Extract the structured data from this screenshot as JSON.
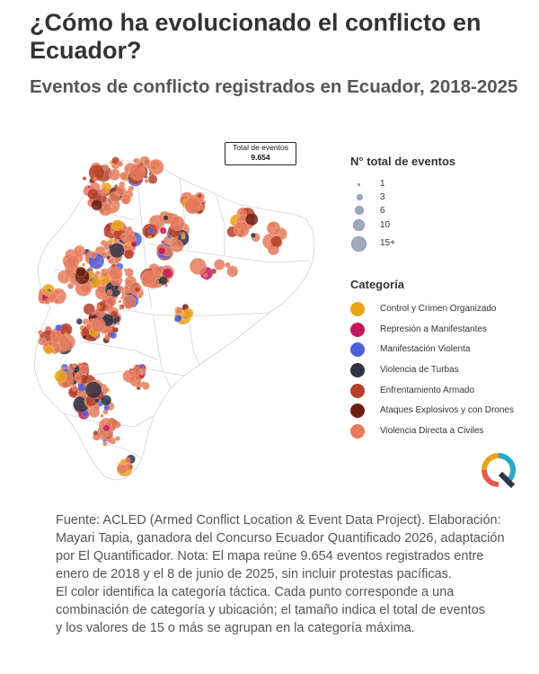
{
  "header": {
    "title": "¿Cómo ha evolucionado el conflicto en Ecuador?",
    "subtitle": "Eventos de conflicto registrados en Ecuador, 2018-2025"
  },
  "total_box": {
    "label": "Total de eventos",
    "value": "9.654"
  },
  "size_legend": {
    "title": "N° total de eventos",
    "color": "#a2a9bf",
    "items": [
      {
        "label": "1",
        "value": 1
      },
      {
        "label": "3",
        "value": 3
      },
      {
        "label": "6",
        "value": 6
      },
      {
        "label": "10",
        "value": 10
      },
      {
        "label": "15+",
        "value": 15
      }
    ]
  },
  "category_legend": {
    "title": "Categoría",
    "items": [
      {
        "label": "Control y Crimen Organizado",
        "color": "#e8a317"
      },
      {
        "label": "Represión a Manifestantes",
        "color": "#c2185b"
      },
      {
        "label": "Manifestación Violenta",
        "color": "#4f5fd6"
      },
      {
        "label": "Violencia de Turbas",
        "color": "#2f3347"
      },
      {
        "label": "Enfrentamiento Armado",
        "color": "#b5402c"
      },
      {
        "label": "Ataques Explosivos y con Drones",
        "color": "#6e1f15"
      },
      {
        "label": "Violencia Directa a Civiles",
        "color": "#e57a5c"
      }
    ]
  },
  "source_note": {
    "lines": [
      "Fuente: ACLED (Armed Conflict Location & Event Data Project). Elaboración:",
      "Mayari Tapia, ganadora del Concurso Ecuador Quantificado 2026, adaptación",
      "por El Quantificador. Nota: El mapa reúne 9.654 eventos registrados entre",
      "enero de 2018 y el 8 de junio de 2025, sin incluir protestas pacíficas.",
      "El color identifica la categoría táctica. Cada punto corresponde a una",
      "combinación de categoría y ubicación; el tamaño indica el total de eventos",
      "y los valores de 15 o más se agrupan en la categoría máxima."
    ]
  },
  "logo": {
    "icon": "el-quantificador-q-logo",
    "colors": [
      "#e8a317",
      "#e35d4f",
      "#2aa8c4",
      "#2f3347"
    ]
  }
}
